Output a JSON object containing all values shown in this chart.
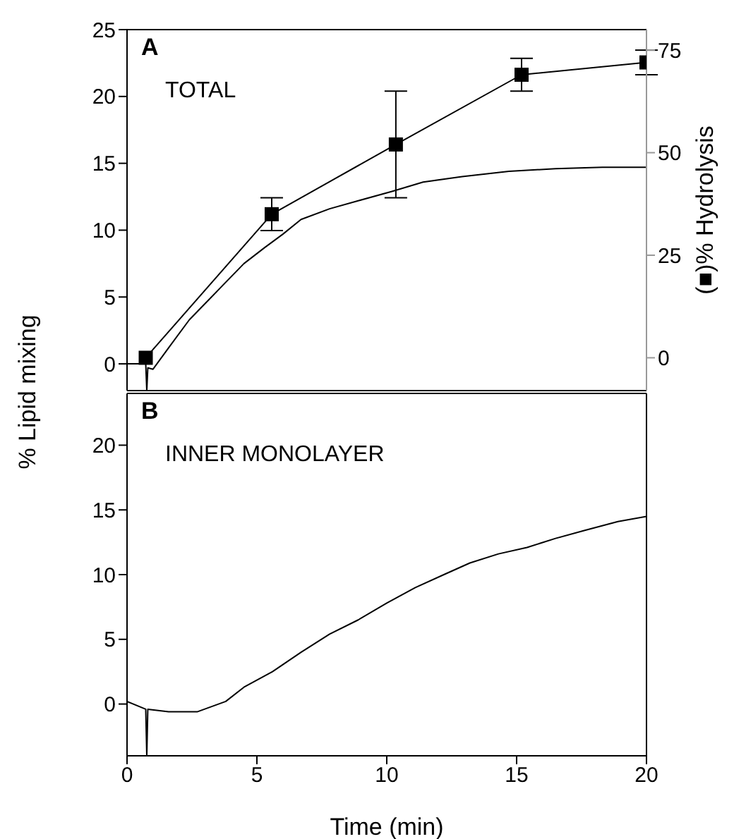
{
  "chart_data": [
    {
      "type": "line",
      "ylabel": "% Lipid mixing",
      "y2label": "(■)% Hydrolysis",
      "annotations": [
        "A",
        "TOTAL"
      ],
      "xlim": [
        0,
        20
      ],
      "xticks": [
        0,
        5,
        10,
        15,
        20
      ],
      "ylim": [
        -2,
        25
      ],
      "yticks": [
        0,
        5,
        10,
        15,
        20,
        25
      ],
      "y2lim": [
        -8,
        80
      ],
      "y2ticks": [
        0,
        25,
        50,
        75
      ],
      "tick_labels": "y",
      "grid": false,
      "legend": false,
      "line_style": "solid",
      "series": [
        {
          "color": "#000000",
          "marker": "none",
          "x": [
            0,
            0.72,
            0.76,
            0.8,
            1.0,
            1.6,
            2.4,
            3.1,
            3.8,
            4.5,
            5.3,
            6.0,
            6.7,
            7.8,
            8.9,
            10.2,
            11.4,
            12.9,
            14.7,
            16.5,
            18.3,
            20
          ],
          "values": [
            0,
            0,
            -2,
            -0.3,
            -0.4,
            1.2,
            3.3,
            4.7,
            6.1,
            7.5,
            8.7,
            9.7,
            10.8,
            11.6,
            12.2,
            12.9,
            13.6,
            14.0,
            14.4,
            14.6,
            14.7,
            14.7
          ]
        },
        {
          "color": "#000000",
          "marker": "square",
          "axis": "y2",
          "x": [
            0.72,
            5.57,
            10.35,
            15.19,
            20
          ],
          "values": [
            0,
            35,
            52,
            69,
            72
          ],
          "errors": [
            null,
            4,
            13,
            4,
            3
          ]
        }
      ]
    },
    {
      "type": "line",
      "xlabel": "Time (min)",
      "annotations": [
        "B",
        "INNER MONOLAYER"
      ],
      "xlim": [
        0,
        20
      ],
      "xticks": [
        0,
        5,
        10,
        15,
        20
      ],
      "ylim": [
        -4,
        24
      ],
      "yticks": [
        0,
        5,
        10,
        15,
        20
      ],
      "grid": false,
      "legend": false,
      "line_style": "solid",
      "series": [
        {
          "color": "#000000",
          "marker": "none",
          "x": [
            0,
            0.72,
            0.76,
            0.8,
            1.6,
            2.7,
            3.8,
            4.5,
            5.6,
            6.7,
            7.8,
            8.9,
            10.0,
            11.1,
            12.2,
            13.2,
            14.3,
            15.4,
            16.5,
            17.6,
            18.9,
            20
          ],
          "values": [
            0.2,
            -0.4,
            -4,
            -0.4,
            -0.6,
            -0.6,
            0.2,
            1.3,
            2.5,
            4.0,
            5.4,
            6.5,
            7.8,
            9.0,
            10.0,
            10.9,
            11.6,
            12.1,
            12.8,
            13.4,
            14.1,
            14.5
          ]
        }
      ]
    }
  ]
}
